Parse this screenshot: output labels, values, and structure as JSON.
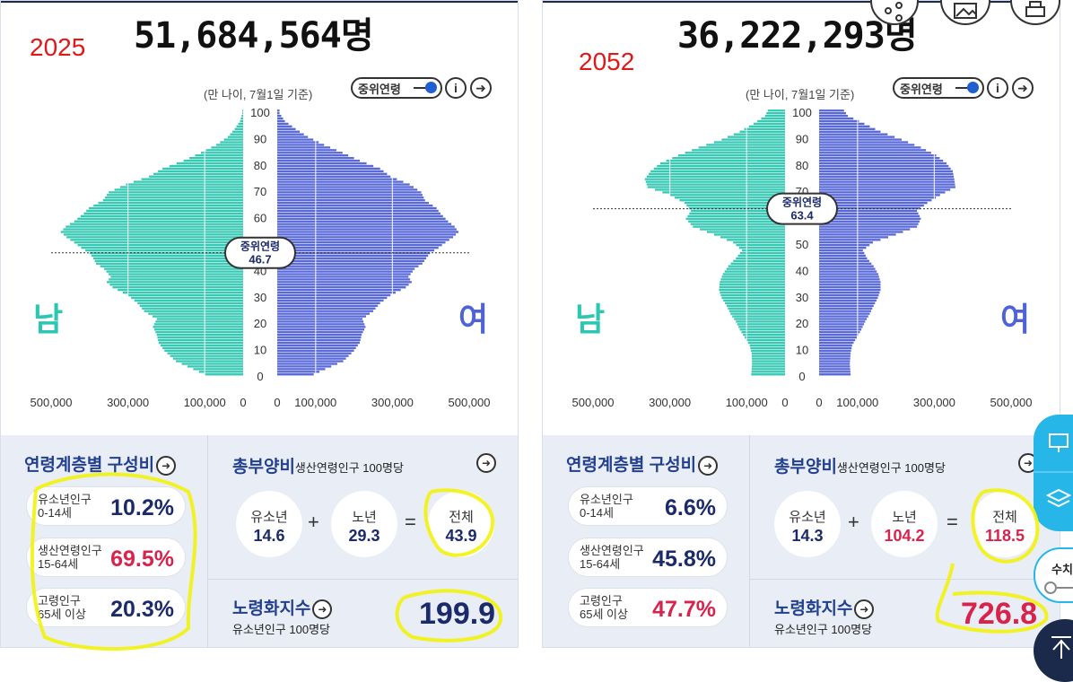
{
  "panels": [
    {
      "total": "51,684,564명",
      "year": "2025",
      "basis": "(만 나이, 7월1일 기준)",
      "toggle_label": "중위연령",
      "median_label": "중위연령",
      "median_value": "46.7",
      "median_age": 46.7,
      "male_label": "남",
      "female_label": "여",
      "age_ticks": [
        "0",
        "10",
        "20",
        "30",
        "40",
        "50",
        "60",
        "70",
        "80",
        "90",
        "100"
      ],
      "x_ticks_left": [
        "500,000",
        "300,000",
        "100,000",
        "0"
      ],
      "x_ticks_right": [
        "0",
        "100,000",
        "300,000",
        "500,000"
      ],
      "composition": {
        "title": "연령계층별 구성비",
        "rows": [
          {
            "label1": "유소년인구",
            "label2": "0-14세",
            "value": "10.2%",
            "red": false
          },
          {
            "label1": "생산연령인구",
            "label2": "15-64세",
            "value": "69.5%",
            "red": true
          },
          {
            "label1": "고령인구",
            "label2": "65세 이상",
            "value": "20.3%",
            "red": false
          }
        ]
      },
      "dependency": {
        "title": "총부양비",
        "subtitle": "생산연령인구 100명당",
        "youth_label": "유소년",
        "youth_value": "14.6",
        "elder_label": "노년",
        "elder_value": "29.3",
        "total_label": "전체",
        "total_value": "43.9",
        "elder_red": false,
        "total_red": false,
        "plus": "+",
        "equals": "="
      },
      "aging": {
        "title": "노령화지수",
        "subtitle": "유소년인구 100명당",
        "value": "199.9",
        "red": false
      },
      "pyramid": {
        "male": [
          [
            0,
            100
          ],
          [
            2,
            130
          ],
          [
            5,
            175
          ],
          [
            9,
            205
          ],
          [
            12,
            220
          ],
          [
            15,
            225
          ],
          [
            18,
            235
          ],
          [
            21,
            225
          ],
          [
            24,
            258
          ],
          [
            27,
            275
          ],
          [
            30,
            300
          ],
          [
            33,
            340
          ],
          [
            35,
            355
          ],
          [
            37,
            345
          ],
          [
            40,
            362
          ],
          [
            42,
            383
          ],
          [
            44,
            390
          ],
          [
            46,
            400
          ],
          [
            48,
            422
          ],
          [
            50,
            440
          ],
          [
            52,
            460
          ],
          [
            54,
            475
          ],
          [
            56,
            462
          ],
          [
            58,
            440
          ],
          [
            61,
            415
          ],
          [
            63,
            402
          ],
          [
            66,
            365
          ],
          [
            69,
            350
          ],
          [
            72,
            305
          ],
          [
            75,
            245
          ],
          [
            78,
            210
          ],
          [
            81,
            155
          ],
          [
            84,
            110
          ],
          [
            87,
            70
          ],
          [
            90,
            40
          ],
          [
            93,
            22
          ],
          [
            96,
            8
          ],
          [
            99,
            2
          ]
        ],
        "female": [
          [
            0,
            95
          ],
          [
            2,
            125
          ],
          [
            5,
            172
          ],
          [
            9,
            200
          ],
          [
            12,
            215
          ],
          [
            15,
            220
          ],
          [
            18,
            230
          ],
          [
            21,
            222
          ],
          [
            24,
            250
          ],
          [
            27,
            268
          ],
          [
            30,
            295
          ],
          [
            33,
            335
          ],
          [
            35,
            350
          ],
          [
            37,
            342
          ],
          [
            40,
            358
          ],
          [
            42,
            378
          ],
          [
            44,
            388
          ],
          [
            46,
            398
          ],
          [
            48,
            420
          ],
          [
            50,
            438
          ],
          [
            52,
            458
          ],
          [
            54,
            472
          ],
          [
            56,
            462
          ],
          [
            58,
            445
          ],
          [
            61,
            425
          ],
          [
            63,
            415
          ],
          [
            66,
            385
          ],
          [
            69,
            375
          ],
          [
            72,
            345
          ],
          [
            75,
            295
          ],
          [
            78,
            268
          ],
          [
            81,
            215
          ],
          [
            84,
            170
          ],
          [
            87,
            122
          ],
          [
            90,
            80
          ],
          [
            93,
            48
          ],
          [
            96,
            20
          ],
          [
            99,
            6
          ]
        ]
      }
    },
    {
      "total": "36,222,293명",
      "year": "2052",
      "basis": "(만 나이, 7월1일 기준)",
      "toggle_label": "중위연령",
      "median_label": "중위연령",
      "median_value": "63.4",
      "median_age": 63.4,
      "male_label": "남",
      "female_label": "여",
      "age_ticks": [
        "0",
        "10",
        "20",
        "30",
        "40",
        "50",
        "60",
        "70",
        "80",
        "90",
        "100"
      ],
      "x_ticks_left": [
        "500,000",
        "300,000",
        "100,000",
        "0"
      ],
      "x_ticks_right": [
        "0",
        "100,000",
        "300,000",
        "500,000"
      ],
      "composition": {
        "title": "연령계층별 구성비",
        "rows": [
          {
            "label1": "유소년인구",
            "label2": "0-14세",
            "value": "6.6%",
            "red": false
          },
          {
            "label1": "생산연령인구",
            "label2": "15-64세",
            "value": "45.8%",
            "red": false
          },
          {
            "label1": "고령인구",
            "label2": "65세 이상",
            "value": "47.7%",
            "red": true
          }
        ]
      },
      "dependency": {
        "title": "총부양비",
        "subtitle": "생산연령인구 100명당",
        "youth_label": "유소년",
        "youth_value": "14.3",
        "elder_label": "노년",
        "elder_value": "104.2",
        "total_label": "전체",
        "total_value": "118.5",
        "elder_red": true,
        "total_red": true,
        "plus": "+",
        "equals": "="
      },
      "aging": {
        "title": "노령화지수",
        "subtitle": "유소년인구 100명당",
        "value": "726.8",
        "red": true
      },
      "pyramid": {
        "male": [
          [
            0,
            88
          ],
          [
            4,
            86
          ],
          [
            8,
            87
          ],
          [
            11,
            92
          ],
          [
            14,
            105
          ],
          [
            17,
            118
          ],
          [
            20,
            128
          ],
          [
            23,
            142
          ],
          [
            26,
            152
          ],
          [
            29,
            165
          ],
          [
            32,
            172
          ],
          [
            35,
            170
          ],
          [
            38,
            162
          ],
          [
            41,
            148
          ],
          [
            44,
            128
          ],
          [
            47,
            112
          ],
          [
            50,
            135
          ],
          [
            53,
            185
          ],
          [
            56,
            240
          ],
          [
            59,
            258
          ],
          [
            62,
            245
          ],
          [
            65,
            262
          ],
          [
            68,
            300
          ],
          [
            71,
            358
          ],
          [
            74,
            365
          ],
          [
            77,
            350
          ],
          [
            80,
            325
          ],
          [
            83,
            278
          ],
          [
            86,
            225
          ],
          [
            89,
            165
          ],
          [
            92,
            118
          ],
          [
            95,
            82
          ],
          [
            98,
            52
          ],
          [
            100,
            45
          ]
        ],
        "female": [
          [
            0,
            82
          ],
          [
            4,
            80
          ],
          [
            8,
            82
          ],
          [
            11,
            86
          ],
          [
            14,
            98
          ],
          [
            17,
            110
          ],
          [
            20,
            120
          ],
          [
            23,
            132
          ],
          [
            26,
            142
          ],
          [
            29,
            153
          ],
          [
            32,
            160
          ],
          [
            35,
            160
          ],
          [
            38,
            154
          ],
          [
            41,
            142
          ],
          [
            44,
            125
          ],
          [
            47,
            114
          ],
          [
            50,
            140
          ],
          [
            53,
            200
          ],
          [
            56,
            255
          ],
          [
            59,
            265
          ],
          [
            62,
            255
          ],
          [
            65,
            282
          ],
          [
            68,
            315
          ],
          [
            71,
            355
          ],
          [
            74,
            352
          ],
          [
            77,
            348
          ],
          [
            80,
            332
          ],
          [
            83,
            305
          ],
          [
            86,
            265
          ],
          [
            89,
            215
          ],
          [
            92,
            160
          ],
          [
            95,
            118
          ],
          [
            98,
            75
          ],
          [
            100,
            65
          ]
        ]
      }
    }
  ],
  "float": {
    "label": "수치"
  }
}
